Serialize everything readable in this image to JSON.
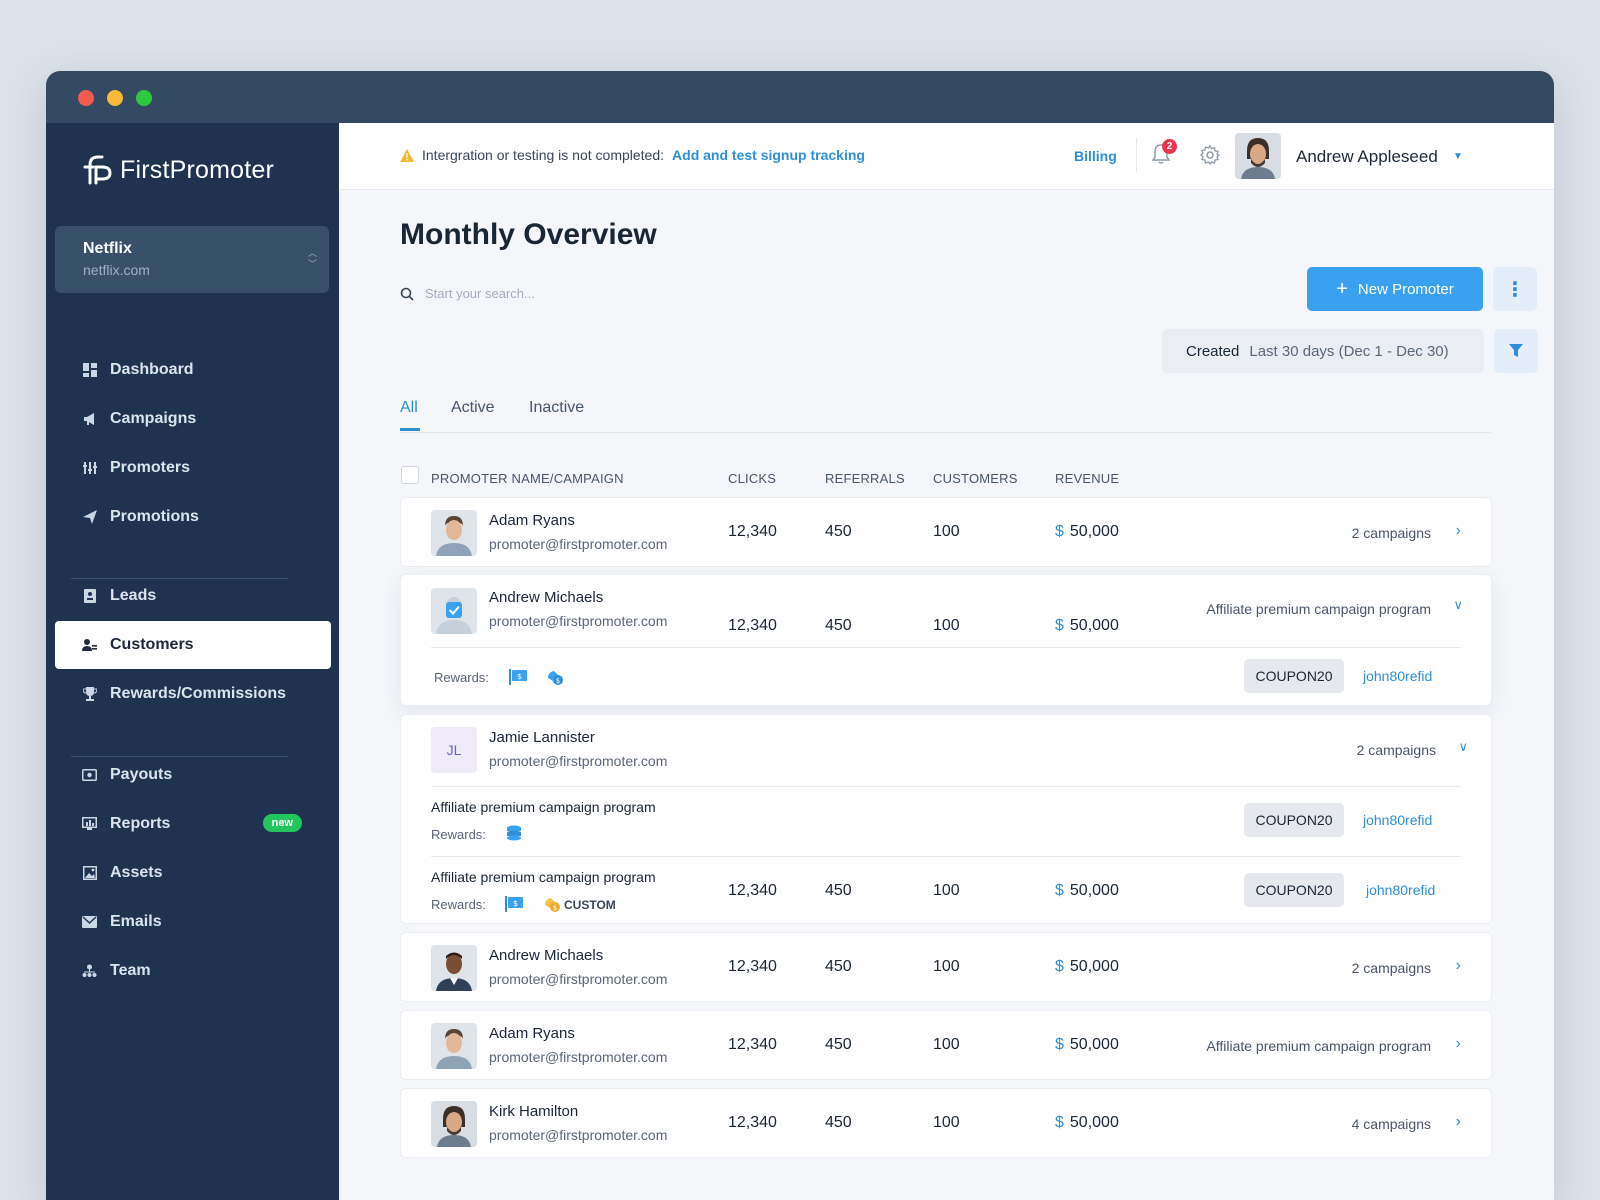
{
  "app": {
    "name": "FirstPromoter"
  },
  "org": {
    "name": "Netflix",
    "domain": "netflix.com"
  },
  "nav": {
    "items": [
      {
        "label": "Dashboard",
        "icon": "dashboard-icon"
      },
      {
        "label": "Campaigns",
        "icon": "megaphone-icon"
      },
      {
        "label": "Promoters",
        "icon": "promoters-icon"
      },
      {
        "label": "Promotions",
        "icon": "paper-plane-icon"
      },
      {
        "label": "Leads",
        "icon": "contact-icon"
      },
      {
        "label": "Customers",
        "icon": "customers-icon"
      },
      {
        "label": "Rewards/Commissions",
        "icon": "trophy-icon"
      },
      {
        "label": "Payouts",
        "icon": "payout-icon"
      },
      {
        "label": "Reports",
        "icon": "reports-icon",
        "badge": "new"
      },
      {
        "label": "Assets",
        "icon": "image-icon"
      },
      {
        "label": "Emails",
        "icon": "mail-icon"
      },
      {
        "label": "Team",
        "icon": "team-icon"
      }
    ]
  },
  "topbar": {
    "warning_text": "Intergration or testing is not completed:",
    "warning_link": "Add and test signup tracking",
    "billing": "Billing",
    "notifications": "2",
    "user_name": "Andrew Appleseed"
  },
  "page": {
    "title": "Monthly Overview",
    "new_promoter": "New Promoter",
    "search_placeholder": "Start your search...",
    "filter_label": "Created",
    "filter_value": "Last 30 days (Dec 1 - Dec 30)",
    "tabs": [
      "All",
      "Active",
      "Inactive"
    ],
    "columns": [
      "PROMOTER NAME/CAMPAIGN",
      "CLICKS",
      "REFERRALS",
      "CUSTOMERS",
      "REVENUE"
    ]
  },
  "rows": [
    {
      "name": "Adam Ryans",
      "email": "promoter@firstpromoter.com",
      "clicks": "12,340",
      "referrals": "450",
      "customers": "100",
      "revenue": "50,000",
      "currency": "$",
      "meta": "2 campaigns"
    },
    {
      "name": "Andrew Michaels",
      "email": "promoter@firstpromoter.com",
      "clicks": "12,340",
      "referrals": "450",
      "customers": "100",
      "revenue": "50,000",
      "currency": "$",
      "meta": "Affiliate premium campaign program",
      "rewards_label": "Rewards:",
      "coupon": "COUPON20",
      "refid": "john80refid"
    },
    {
      "name": "Jamie Lannister",
      "initials": "JL",
      "email": "promoter@firstpromoter.com",
      "meta": "2 campaigns",
      "campaigns": [
        {
          "name": "Affiliate premium campaign program",
          "rewards_label": "Rewards:",
          "coupon": "COUPON20",
          "refid": "john80refid"
        },
        {
          "name": "Affiliate premium campaign program",
          "rewards_label": "Rewards:",
          "custom": "CUSTOM",
          "clicks": "12,340",
          "referrals": "450",
          "customers": "100",
          "revenue": "50,000",
          "currency": "$",
          "coupon": "COUPON20",
          "refid": "john80refid"
        }
      ]
    },
    {
      "name": "Andrew Michaels",
      "email": "promoter@firstpromoter.com",
      "clicks": "12,340",
      "referrals": "450",
      "customers": "100",
      "revenue": "50,000",
      "currency": "$",
      "meta": "2 campaigns"
    },
    {
      "name": "Adam Ryans",
      "email": "promoter@firstpromoter.com",
      "clicks": "12,340",
      "referrals": "450",
      "customers": "100",
      "revenue": "50,000",
      "currency": "$",
      "meta": "Affiliate premium campaign program"
    },
    {
      "name": "Kirk Hamilton",
      "email": "promoter@firstpromoter.com",
      "clicks": "12,340",
      "referrals": "450",
      "customers": "100",
      "revenue": "50,000",
      "currency": "$",
      "meta": "4 campaigns"
    }
  ],
  "colors": {
    "sidebar": "#1f3350",
    "titlebar": "#344a62",
    "accent": "#3aa0f0",
    "link": "#2e8fd8",
    "badge_new": "#22c55e",
    "notif": "#e8364f"
  }
}
